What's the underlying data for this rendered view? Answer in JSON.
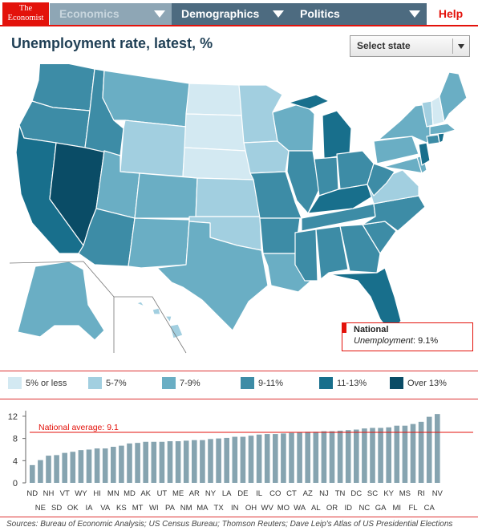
{
  "nav": {
    "logo_line1": "The",
    "logo_line2": "Economist",
    "tabs": [
      {
        "label": "Economics"
      },
      {
        "label": "Demographics"
      },
      {
        "label": "Politics"
      }
    ],
    "help": "Help"
  },
  "title": "Unemployment rate, latest, %",
  "select_state": "Select state",
  "info_box": {
    "label": "National",
    "value_label": "Unemployment",
    "value": ": 9.1%"
  },
  "legend": [
    {
      "label": "5% or less",
      "color": "#d3e9f2"
    },
    {
      "label": "5-7%",
      "color": "#a2cfe0"
    },
    {
      "label": "7-9%",
      "color": "#6aaec4"
    },
    {
      "label": "9-11%",
      "color": "#3d8ca6"
    },
    {
      "label": "11-13%",
      "color": "#186f8c"
    },
    {
      "label": "Over 13%",
      "color": "#0a4c66"
    }
  ],
  "colors": {
    "accent": "#e3120b",
    "bar": "#86a4b0",
    "nav_dark": "#4d6b80",
    "nav_light": "#8ea6b5"
  },
  "chart_data": {
    "type": "bar",
    "title": "",
    "xlabel": "",
    "ylabel": "",
    "ylim": [
      0,
      13
    ],
    "yticks": [
      0,
      4,
      8,
      12
    ],
    "reference_line": {
      "label": "National average: 9.1",
      "value": 9.1
    },
    "categories": [
      "ND",
      "NE",
      "NH",
      "SD",
      "VT",
      "OK",
      "WY",
      "IA",
      "HI",
      "VA",
      "MN",
      "KS",
      "MD",
      "MT",
      "AK",
      "WI",
      "UT",
      "PA",
      "ME",
      "NM",
      "AR",
      "MA",
      "NY",
      "TX",
      "LA",
      "IN",
      "DE",
      "OH",
      "IL",
      "WV",
      "CO",
      "MO",
      "CT",
      "WA",
      "AZ",
      "AL",
      "NJ",
      "OR",
      "TN",
      "ID",
      "DC",
      "NC",
      "SC",
      "GA",
      "KY",
      "MI",
      "MS",
      "FL",
      "RI",
      "CA",
      "NV"
    ],
    "values": [
      3.2,
      4.1,
      4.9,
      5.0,
      5.4,
      5.6,
      5.9,
      6.0,
      6.2,
      6.2,
      6.5,
      6.7,
      7.1,
      7.2,
      7.4,
      7.4,
      7.4,
      7.5,
      7.5,
      7.6,
      7.7,
      7.7,
      7.9,
      8.0,
      8.1,
      8.3,
      8.3,
      8.5,
      8.7,
      8.8,
      8.8,
      8.9,
      9.0,
      9.1,
      9.2,
      9.2,
      9.3,
      9.3,
      9.4,
      9.5,
      9.6,
      9.8,
      9.9,
      9.9,
      10.0,
      10.3,
      10.3,
      10.6,
      11.0,
      11.9,
      12.4
    ]
  },
  "sources": "Sources: Bureau of Economic Analysis; US Census Bureau; Thomson Reuters; Dave Leip's Atlas of US Presidential Elections"
}
